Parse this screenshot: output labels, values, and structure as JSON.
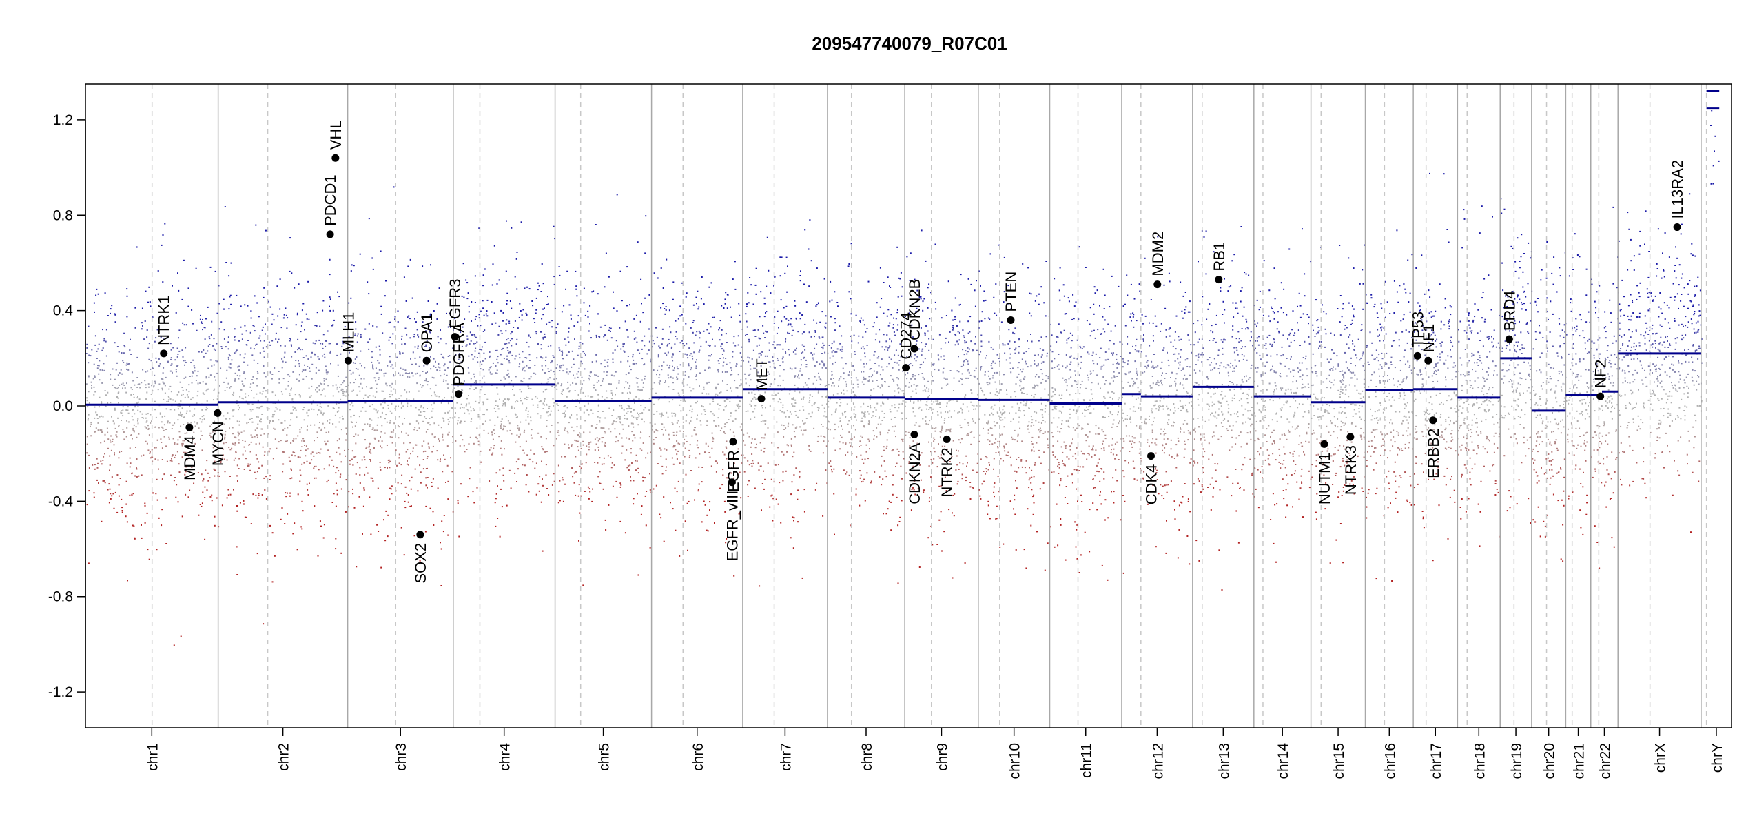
{
  "chart_data": {
    "type": "scatter",
    "title": "209547740079_R07C01",
    "xlabel": "",
    "ylabel": "",
    "ylim": [
      -1.35,
      1.35
    ],
    "yticks": [
      -1.2,
      -0.8,
      -0.4,
      0.0,
      0.4,
      0.8,
      1.2
    ],
    "ytick_labels": [
      "-1.2",
      "-0.8",
      "-0.4",
      "0.0",
      "0.4",
      "0.8",
      "1.2"
    ],
    "grid": false,
    "colors": {
      "gain": "#1a1aa8",
      "loss": "#b22222",
      "neutral": "#b0b0b0",
      "segment": "#00008b",
      "chr_boundary": "#a8a8a8",
      "centromere": "#c8c8c8"
    },
    "chromosomes": [
      {
        "name": "chr1",
        "label": "chr1",
        "start": 0,
        "end": 249,
        "centromere": 125
      },
      {
        "name": "chr2",
        "label": "chr2",
        "start": 249,
        "end": 492,
        "centromere": 342
      },
      {
        "name": "chr3",
        "label": "chr3",
        "start": 492,
        "end": 690,
        "centromere": 582
      },
      {
        "name": "chr4",
        "label": "chr4",
        "start": 690,
        "end": 881,
        "centromere": 740
      },
      {
        "name": "chr5",
        "label": "chr5",
        "start": 881,
        "end": 1062,
        "centromere": 929
      },
      {
        "name": "chr6",
        "label": "chr6",
        "start": 1062,
        "end": 1233,
        "centromere": 1121
      },
      {
        "name": "chr7",
        "label": "chr7",
        "start": 1233,
        "end": 1392,
        "centromere": 1292
      },
      {
        "name": "chr8",
        "label": "chr8",
        "start": 1392,
        "end": 1537,
        "centromere": 1437
      },
      {
        "name": "chr9",
        "label": "chr9",
        "start": 1537,
        "end": 1675,
        "centromere": 1587
      },
      {
        "name": "chr10",
        "label": "chr10",
        "start": 1675,
        "end": 1809,
        "centromere": 1715
      },
      {
        "name": "chr11",
        "label": "chr11",
        "start": 1809,
        "end": 1944,
        "centromere": 1862
      },
      {
        "name": "chr12",
        "label": "chr12",
        "start": 1944,
        "end": 2077,
        "centromere": 1980
      },
      {
        "name": "chr13",
        "label": "chr13",
        "start": 2077,
        "end": 2192,
        "centromere": 2095
      },
      {
        "name": "chr14",
        "label": "chr14",
        "start": 2192,
        "end": 2299,
        "centromere": 2209
      },
      {
        "name": "chr15",
        "label": "chr15",
        "start": 2299,
        "end": 2401,
        "centromere": 2318
      },
      {
        "name": "chr16",
        "label": "chr16",
        "start": 2401,
        "end": 2491,
        "centromere": 2437
      },
      {
        "name": "chr17",
        "label": "chr17",
        "start": 2491,
        "end": 2574,
        "centromere": 2515
      },
      {
        "name": "chr18",
        "label": "chr18",
        "start": 2574,
        "end": 2654,
        "centromere": 2592
      },
      {
        "name": "chr19",
        "label": "chr19",
        "start": 2654,
        "end": 2713,
        "centromere": 2680
      },
      {
        "name": "chr20",
        "label": "chr20",
        "start": 2713,
        "end": 2777,
        "centromere": 2741
      },
      {
        "name": "chr21",
        "label": "chr21",
        "start": 2777,
        "end": 2824,
        "centromere": 2789
      },
      {
        "name": "chr22",
        "label": "chr22",
        "start": 2824,
        "end": 2875,
        "centromere": 2839
      },
      {
        "name": "chrX",
        "label": "chrX",
        "start": 2875,
        "end": 3031,
        "centromere": 2935
      },
      {
        "name": "chrY",
        "label": "chrY",
        "start": 3031,
        "end": 3088,
        "centromere": 3041
      }
    ],
    "segments": [
      {
        "chr": "chr1",
        "x0": 0,
        "x1": 249,
        "y": 0.005
      },
      {
        "chr": "chr2",
        "x0": 249,
        "x1": 492,
        "y": 0.015
      },
      {
        "chr": "chr3",
        "x0": 492,
        "x1": 690,
        "y": 0.02
      },
      {
        "chr": "chr4",
        "x0": 690,
        "x1": 881,
        "y": 0.09
      },
      {
        "chr": "chr5",
        "x0": 881,
        "x1": 1062,
        "y": 0.02
      },
      {
        "chr": "chr6",
        "x0": 1062,
        "x1": 1233,
        "y": 0.035
      },
      {
        "chr": "chr7",
        "x0": 1233,
        "x1": 1392,
        "y": 0.07
      },
      {
        "chr": "chr8",
        "x0": 1392,
        "x1": 1537,
        "y": 0.035
      },
      {
        "chr": "chr9",
        "x0": 1537,
        "x1": 1675,
        "y": 0.03
      },
      {
        "chr": "chr10",
        "x0": 1675,
        "x1": 1809,
        "y": 0.025
      },
      {
        "chr": "chr11",
        "x0": 1809,
        "x1": 1944,
        "y": 0.01
      },
      {
        "chr": "chr12",
        "x0": 1944,
        "x1": 1980,
        "y": 0.05
      },
      {
        "chr": "chr12",
        "x0": 1980,
        "x1": 2077,
        "y": 0.04
      },
      {
        "chr": "chr13",
        "x0": 2077,
        "x1": 2192,
        "y": 0.08
      },
      {
        "chr": "chr14",
        "x0": 2192,
        "x1": 2299,
        "y": 0.04
      },
      {
        "chr": "chr15",
        "x0": 2299,
        "x1": 2401,
        "y": 0.015
      },
      {
        "chr": "chr16",
        "x0": 2401,
        "x1": 2491,
        "y": 0.065
      },
      {
        "chr": "chr17",
        "x0": 2491,
        "x1": 2574,
        "y": 0.07
      },
      {
        "chr": "chr18",
        "x0": 2574,
        "x1": 2654,
        "y": 0.035
      },
      {
        "chr": "chr19",
        "x0": 2654,
        "x1": 2713,
        "y": 0.2
      },
      {
        "chr": "chr20",
        "x0": 2713,
        "x1": 2777,
        "y": -0.02
      },
      {
        "chr": "chr21",
        "x0": 2777,
        "x1": 2824,
        "y": 0.045
      },
      {
        "chr": "chr22",
        "x0": 2824,
        "x1": 2845,
        "y": 0.045
      },
      {
        "chr": "chr22",
        "x0": 2845,
        "x1": 2875,
        "y": 0.06
      },
      {
        "chr": "chrX",
        "x0": 2875,
        "x1": 3031,
        "y": 0.22
      },
      {
        "chr": "chrY",
        "x0": 3041,
        "x1": 3065,
        "y": 1.32
      },
      {
        "chr": "chrY",
        "x0": 3041,
        "x1": 3065,
        "y": 1.25
      }
    ],
    "genes": [
      {
        "name": "NTRK1",
        "x": 147,
        "y": 0.22,
        "label_pos": "above"
      },
      {
        "name": "MDM4",
        "x": 195,
        "y": -0.09,
        "label_pos": "below"
      },
      {
        "name": "MYCN",
        "x": 248,
        "y": -0.03,
        "label_pos": "below"
      },
      {
        "name": "VHL",
        "x": 469,
        "y": 1.04,
        "label_pos": "above"
      },
      {
        "name": "PDCD1",
        "x": 459,
        "y": 0.72,
        "label_pos": "above"
      },
      {
        "name": "MLH1",
        "x": 493,
        "y": 0.19,
        "label_pos": "above"
      },
      {
        "name": "OPA1",
        "x": 640,
        "y": 0.19,
        "label_pos": "above"
      },
      {
        "name": "SOX2",
        "x": 628,
        "y": -0.54,
        "label_pos": "below"
      },
      {
        "name": "FGFR3",
        "x": 693,
        "y": 0.29,
        "label_pos": "above"
      },
      {
        "name": "PDGFRA",
        "x": 700,
        "y": 0.05,
        "label_pos": "above"
      },
      {
        "name": "EGFR_vIII",
        "x": 1213,
        "y": -0.32,
        "label_pos": "below"
      },
      {
        "name": "EGFR",
        "x": 1215,
        "y": -0.15,
        "label_pos": "below"
      },
      {
        "name": "MET",
        "x": 1268,
        "y": 0.03,
        "label_pos": "above"
      },
      {
        "name": "CD274",
        "x": 1539,
        "y": 0.16,
        "label_pos": "above"
      },
      {
        "name": "CDKN2B",
        "x": 1555,
        "y": 0.24,
        "label_pos": "above"
      },
      {
        "name": "CDKN2A",
        "x": 1555,
        "y": -0.12,
        "label_pos": "below"
      },
      {
        "name": "NTRK2",
        "x": 1616,
        "y": -0.14,
        "label_pos": "below"
      },
      {
        "name": "PTEN",
        "x": 1736,
        "y": 0.36,
        "label_pos": "above"
      },
      {
        "name": "MDM2",
        "x": 2011,
        "y": 0.51,
        "label_pos": "above"
      },
      {
        "name": "CDK4",
        "x": 1999,
        "y": -0.21,
        "label_pos": "below"
      },
      {
        "name": "RB1",
        "x": 2126,
        "y": 0.53,
        "label_pos": "above"
      },
      {
        "name": "NUTM1",
        "x": 2324,
        "y": -0.16,
        "label_pos": "below"
      },
      {
        "name": "NTRK3",
        "x": 2373,
        "y": -0.13,
        "label_pos": "below"
      },
      {
        "name": "TP53",
        "x": 2499,
        "y": 0.21,
        "label_pos": "above"
      },
      {
        "name": "NF1",
        "x": 2519,
        "y": 0.19,
        "label_pos": "above"
      },
      {
        "name": "ERBB2",
        "x": 2528,
        "y": -0.06,
        "label_pos": "below"
      },
      {
        "name": "BRD4",
        "x": 2671,
        "y": 0.28,
        "label_pos": "above"
      },
      {
        "name": "NF2",
        "x": 2842,
        "y": 0.04,
        "label_pos": "above"
      },
      {
        "name": "IL13RA2",
        "x": 2986,
        "y": 0.75,
        "label_pos": "above"
      }
    ]
  }
}
